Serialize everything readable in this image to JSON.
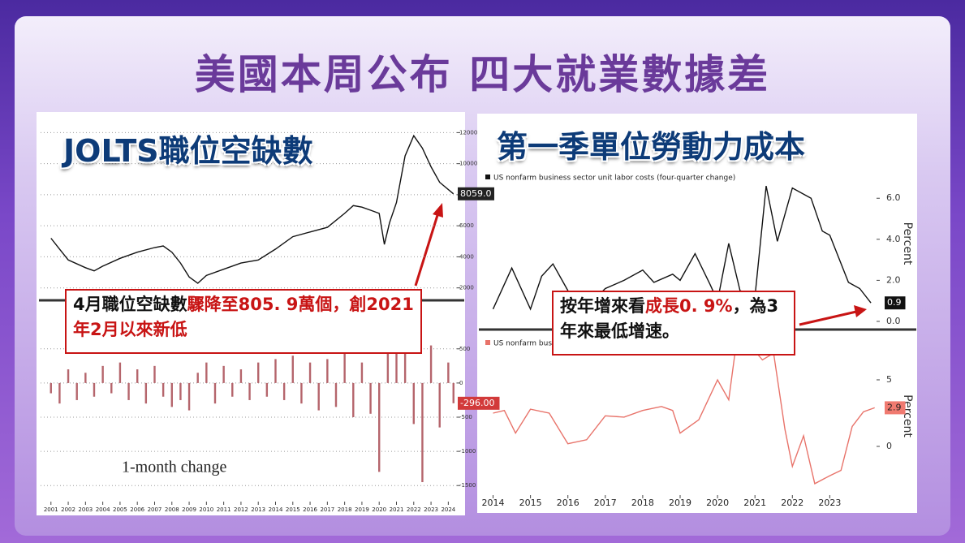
{
  "title": "美國本周公布  四大就業數據差",
  "left": {
    "heading": "JOLTS職位空缺數",
    "caption": [
      {
        "text": "4月職位空缺數",
        "color": "#111111"
      },
      {
        "text": "驟降至805. 9萬個",
        "color": "#c81414"
      },
      {
        "text": "，創2021年2月以來新低",
        "color": "#c81414"
      }
    ]
  },
  "right": {
    "heading": "第一季單位勞動力成本",
    "caption": [
      {
        "text": "按年增來看",
        "color": "#111111"
      },
      {
        "text": "成長0. 9%",
        "color": "#c81414"
      },
      {
        "text": "，為3 年來最低增速。",
        "color": "#111111"
      }
    ]
  },
  "chart_data": [
    {
      "type": "line",
      "color": "#111111",
      "grid": true,
      "x": [
        2001,
        2001.5,
        2002,
        2003,
        2003.5,
        2004,
        2005,
        2006,
        2007,
        2007.5,
        2008,
        2008.5,
        2009,
        2009.5,
        2010,
        2011,
        2012,
        2013,
        2014,
        2015,
        2016,
        2017,
        2018,
        2018.5,
        2019,
        2019.5,
        2020,
        2020.3,
        2020.6,
        2021,
        2021.5,
        2022,
        2022.5,
        2023,
        2023.5,
        2024.3
      ],
      "values": [
        5200,
        4500,
        3800,
        3300,
        3100,
        3400,
        3900,
        4300,
        4600,
        4700,
        4300,
        3600,
        2700,
        2300,
        2800,
        3200,
        3600,
        3800,
        4500,
        5300,
        5600,
        5900,
        6800,
        7300,
        7200,
        7000,
        6800,
        4800,
        6200,
        7500,
        10500,
        11800,
        11000,
        9800,
        8800,
        8059
      ],
      "end_label": "8059.0",
      "xlim": [
        2000.4,
        2024.5
      ],
      "ylim": [
        1200,
        12700
      ],
      "yticks": [
        2000,
        4000,
        6000,
        8000,
        10000,
        12000
      ]
    },
    {
      "type": "bar",
      "color": "#b5656c",
      "grid": true,
      "subtitle": "1-month change",
      "x": [
        2001,
        2001.5,
        2002,
        2002.5,
        2003,
        2003.5,
        2004,
        2004.5,
        2005,
        2005.5,
        2006,
        2006.5,
        2007,
        2007.5,
        2008,
        2008.5,
        2009,
        2009.5,
        2010,
        2010.5,
        2011,
        2011.5,
        2012,
        2012.5,
        2013,
        2013.5,
        2014,
        2014.5,
        2015,
        2015.5,
        2016,
        2016.5,
        2017,
        2017.5,
        2018,
        2018.5,
        2019,
        2019.5,
        2020,
        2020.5,
        2021,
        2021.5,
        2022,
        2022.5,
        2023,
        2023.5,
        2024,
        2024.3
      ],
      "values": [
        -150,
        -300,
        200,
        -250,
        150,
        -200,
        250,
        -150,
        300,
        -250,
        200,
        -300,
        250,
        -200,
        -350,
        -250,
        -400,
        150,
        300,
        -300,
        250,
        -200,
        200,
        -250,
        300,
        -200,
        350,
        -250,
        400,
        -300,
        300,
        -400,
        350,
        -350,
        450,
        -500,
        300,
        -450,
        -1300,
        700,
        550,
        600,
        -600,
        -1450,
        550,
        -650,
        300,
        -296
      ],
      "end_label": "-296.00",
      "xlim": [
        2000.4,
        2024.5
      ],
      "ylim": [
        -1640,
        735
      ],
      "yticks": [
        -1500,
        -1000,
        -500,
        0,
        500
      ],
      "xticks": [
        2001,
        2002,
        2003,
        2004,
        2005,
        2006,
        2007,
        2008,
        2009,
        2010,
        2011,
        2012,
        2013,
        2014,
        2015,
        2016,
        2017,
        2018,
        2019,
        2020,
        2021,
        2022,
        2023,
        2024
      ]
    },
    {
      "type": "line",
      "color": "#111111",
      "subtitle": "US nonfarm business sector unit labor costs (four-quarter change)",
      "axis_label": "Percent",
      "x": [
        2014,
        2014.5,
        2015,
        2015.3,
        2015.6,
        2016,
        2016.5,
        2017,
        2017.5,
        2018,
        2018.3,
        2018.8,
        2019,
        2019.4,
        2019.8,
        2020,
        2020.3,
        2020.6,
        2021,
        2021.3,
        2021.6,
        2022,
        2022.5,
        2022.8,
        2023,
        2023.5,
        2023.8,
        2024.1
      ],
      "values": [
        0.6,
        2.6,
        0.6,
        2.2,
        2.8,
        1.5,
        0.7,
        1.6,
        2.0,
        2.5,
        1.9,
        2.3,
        2.0,
        3.3,
        1.8,
        1.0,
        3.8,
        1.5,
        1.2,
        6.6,
        3.9,
        6.5,
        6.0,
        4.4,
        4.2,
        1.9,
        1.6,
        0.9
      ],
      "end_label": "0.9",
      "xlim": [
        2013.75,
        2024.25
      ],
      "ylim": [
        -0.16,
        7.75
      ],
      "yticks": [
        {
          "value": 0,
          "label": "0.0"
        },
        {
          "value": 2,
          "label": "2.0"
        },
        {
          "value": 4,
          "label": "4.0"
        },
        {
          "value": 6,
          "label": "6.0"
        }
      ]
    },
    {
      "type": "line",
      "color": "#e8736a",
      "subtitle": "US nonfarm busine",
      "axis_label": "Percent",
      "x": [
        2014,
        2014.3,
        2014.6,
        2015,
        2015.5,
        2016,
        2016.5,
        2017,
        2017.5,
        2018,
        2018.5,
        2018.8,
        2019,
        2019.5,
        2020,
        2020.3,
        2020.5,
        2020.8,
        2021.2,
        2021.5,
        2021.8,
        2022,
        2022.3,
        2022.6,
        2023,
        2023.3,
        2023.6,
        2023.9,
        2024.2
      ],
      "values": [
        2.5,
        2.7,
        1.0,
        2.8,
        2.5,
        0.2,
        0.5,
        2.3,
        2.2,
        2.7,
        3.0,
        2.7,
        1.0,
        2.0,
        5.0,
        3.5,
        7.7,
        7.8,
        6.5,
        7.0,
        1.3,
        -1.5,
        0.8,
        -2.8,
        -2.2,
        -1.8,
        1.5,
        2.6,
        2.9
      ],
      "end_label": "2.9",
      "xlim": [
        2013.75,
        2024.25
      ],
      "ylim": [
        -3.66,
        8.23
      ],
      "yticks": [
        0,
        5
      ],
      "xticks": [
        2014,
        2015,
        2016,
        2017,
        2018,
        2019,
        2020,
        2021,
        2022,
        2023
      ]
    }
  ]
}
